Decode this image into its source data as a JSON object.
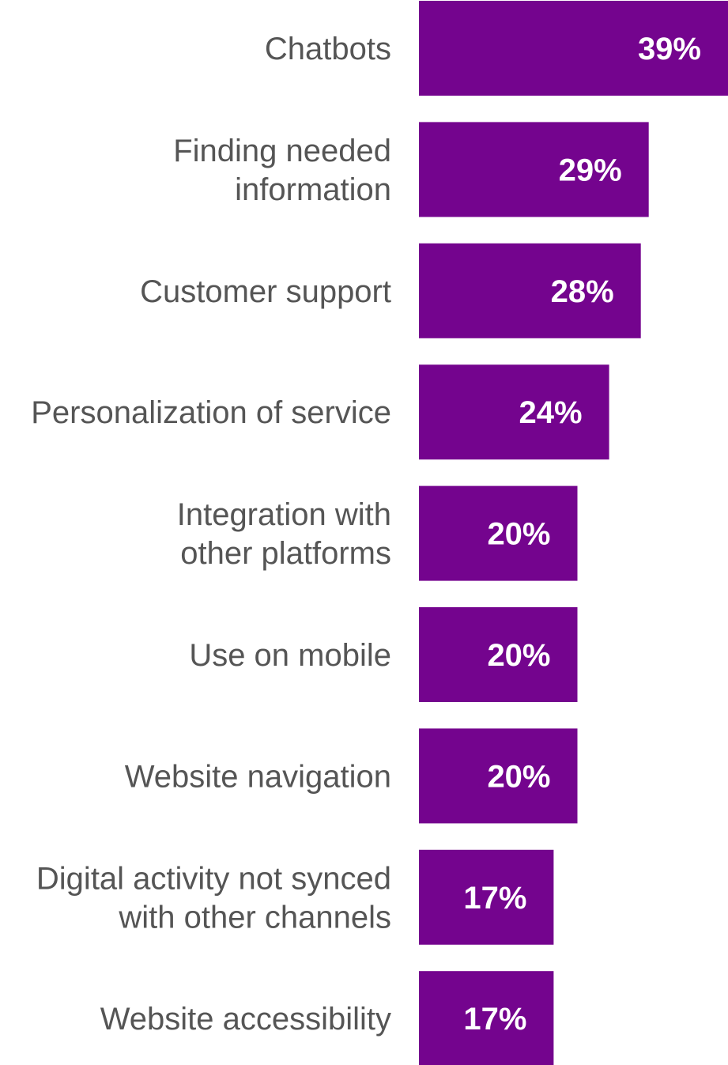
{
  "colors": {
    "bar": "#74048e",
    "label": "#555555",
    "value_text": "#ffffff",
    "background": "#ffffff"
  },
  "chart_data": {
    "type": "bar",
    "orientation": "horizontal",
    "categories": [
      [
        "Chatbots"
      ],
      [
        "Finding needed",
        "information"
      ],
      [
        "Customer support"
      ],
      [
        "Personalization of service"
      ],
      [
        "Integration with",
        "other platforms"
      ],
      [
        "Use on mobile"
      ],
      [
        "Website navigation"
      ],
      [
        "Digital activity not synced",
        "with other channels"
      ],
      [
        "Website accessibility"
      ]
    ],
    "values": [
      39,
      29,
      28,
      24,
      20,
      20,
      20,
      17,
      17
    ],
    "value_labels": [
      "39%",
      "29%",
      "28%",
      "24%",
      "20%",
      "20%",
      "20%",
      "17%",
      "17%"
    ],
    "value_unit": "%",
    "xlim": [
      0,
      39
    ],
    "grid": false,
    "legend": false,
    "title": "",
    "xlabel": "",
    "ylabel": ""
  }
}
